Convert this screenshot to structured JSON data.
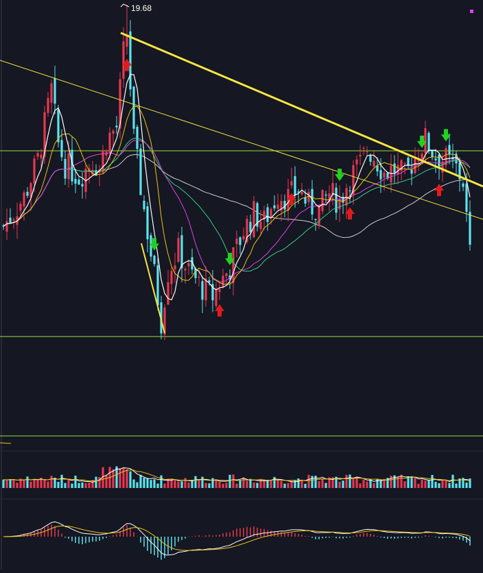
{
  "chart_data": {
    "type": "candlestick",
    "peak_label": "19.68",
    "colors": {
      "background": "#151722",
      "up": "#e8384f",
      "down": "#5be4ee",
      "ma5": "#ffffff",
      "ma10": "#f0c419",
      "ma20": "#e044e0",
      "ma30": "#35d07f",
      "ma60": "#d0d0d0",
      "trendline": "#f5e642",
      "hline": "#9be13f",
      "buy_arrow": "#e21b1b",
      "sell_arrow": "#21d121",
      "marker": "#e040fb"
    },
    "candles": [],
    "signals": [
      {
        "type": "sell",
        "bar": 44
      },
      {
        "type": "buy",
        "bar": 36
      },
      {
        "type": "sell",
        "bar": 66
      },
      {
        "type": "buy",
        "bar": 63
      },
      {
        "type": "buy",
        "bar": 84
      },
      {
        "type": "sell",
        "bar": 98
      },
      {
        "type": "buy",
        "bar": 101
      },
      {
        "type": "sell",
        "bar": 122
      },
      {
        "type": "sell",
        "bar": 129
      },
      {
        "type": "buy",
        "bar": 127
      }
    ]
  }
}
